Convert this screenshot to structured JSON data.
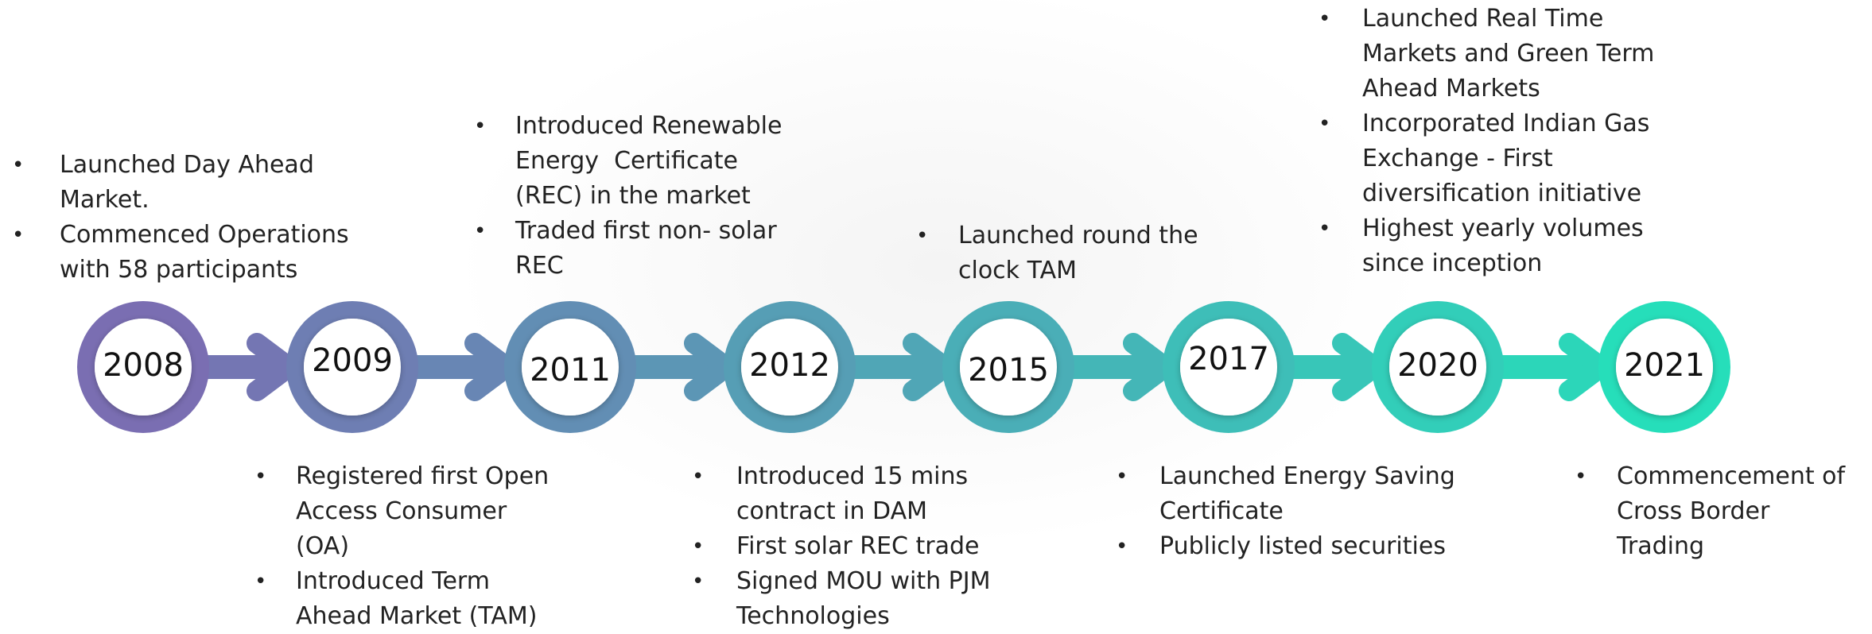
{
  "milestones": [
    {
      "year": "2008",
      "bullets": [
        [
          "Launched Day Ahead",
          "Market."
        ],
        [
          "Commenced Operations",
          "with 58 participants"
        ]
      ]
    },
    {
      "year": "2009",
      "bullets": [
        [
          "Registered first Open",
          "Access Consumer",
          "(OA)"
        ],
        [
          "Introduced Term",
          "Ahead Market (TAM)"
        ]
      ]
    },
    {
      "year": "2011",
      "bullets": [
        [
          "Introduced Renewable",
          "Energy  Certificate",
          "(REC) in the market"
        ],
        [
          "Traded first non- solar",
          "REC"
        ]
      ]
    },
    {
      "year": "2012",
      "bullets": [
        [
          "Introduced 15 mins",
          "contract in DAM"
        ],
        [
          "First solar REC trade"
        ],
        [
          "Signed MOU with PJM",
          "Technologies"
        ]
      ]
    },
    {
      "year": "2015",
      "bullets": [
        [
          "Launched round the",
          "clock TAM"
        ]
      ]
    },
    {
      "year": "2017",
      "bullets": [
        [
          "Launched Energy Saving",
          "Certificate"
        ],
        [
          "Publicly listed securities"
        ]
      ]
    },
    {
      "year": "2020",
      "bullets": [
        [
          "Launched Real Time",
          "Markets and Green Term",
          "Ahead Markets"
        ],
        [
          "Incorporated Indian Gas",
          "Exchange - First",
          "diversification initiative"
        ],
        [
          "Highest yearly volumes",
          "since inception"
        ]
      ]
    },
    {
      "year": "2021",
      "bullets": [
        [
          "Commencement of",
          "Cross Border",
          "Trading"
        ]
      ]
    }
  ]
}
